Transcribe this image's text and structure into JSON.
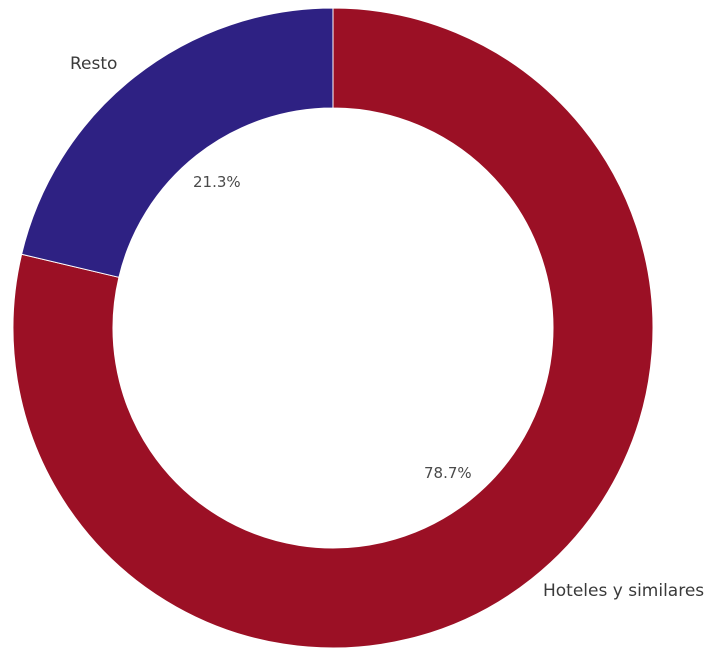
{
  "chart_data": {
    "type": "pie",
    "donut": true,
    "categories": [
      "Hoteles y similares",
      "Resto"
    ],
    "values": [
      78.7,
      21.3
    ],
    "value_labels": [
      "78.7%",
      "21.3%"
    ],
    "colors": [
      "#9b1025",
      "#2e2183"
    ],
    "title": "",
    "legend": "none"
  }
}
